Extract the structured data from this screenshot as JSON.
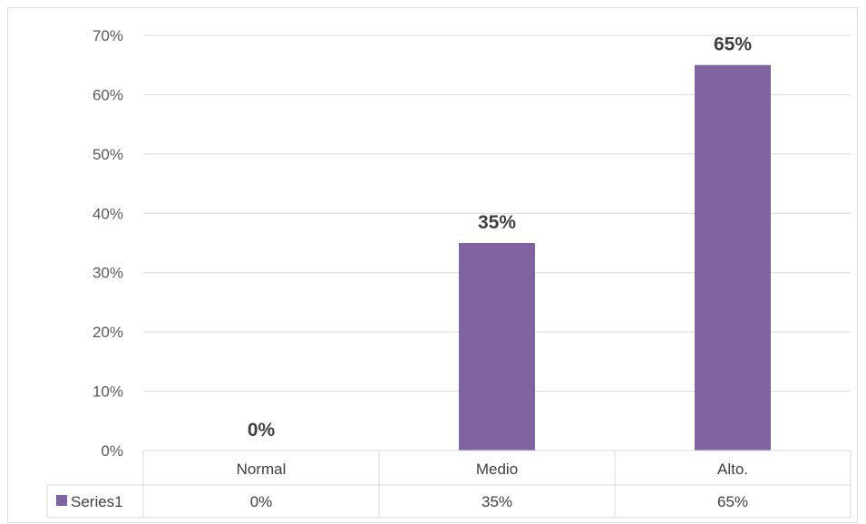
{
  "chart_data": {
    "type": "bar",
    "categories": [
      "Normal",
      "Medio",
      "Alto."
    ],
    "series": [
      {
        "name": "Series1",
        "values": [
          0,
          35,
          65
        ],
        "labels": [
          "0%",
          "35%",
          "65%"
        ]
      }
    ],
    "ylim": [
      0,
      70
    ],
    "yticks": [
      0,
      10,
      20,
      30,
      40,
      50,
      60,
      70
    ],
    "ytick_labels": [
      "0%",
      "10%",
      "20%",
      "30%",
      "40%",
      "50%",
      "60%",
      "70%"
    ],
    "title": "",
    "xlabel": "",
    "ylabel": "",
    "grid": true,
    "legend": "data-table",
    "data_table": true,
    "colors": {
      "bar": "#8064a2",
      "grid": "#d9d9d9",
      "text": "#404040"
    }
  }
}
